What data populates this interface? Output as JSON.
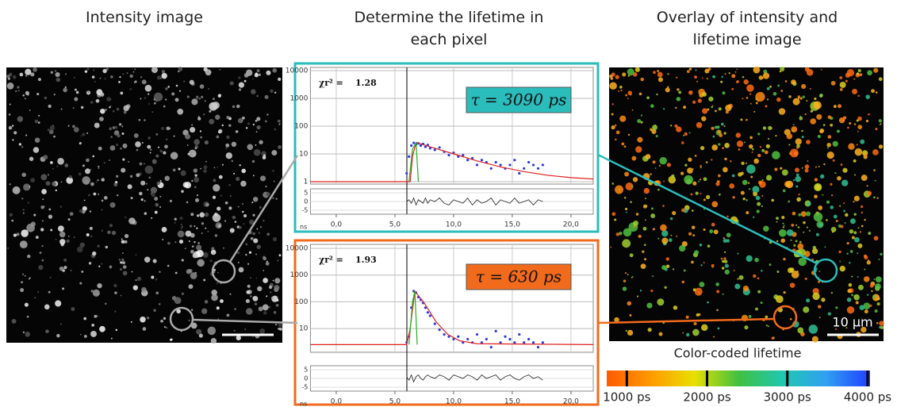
{
  "titles": [
    "Intensity image",
    "Determine the lifetime in each pixel",
    "Overlay of intensity and lifetime image"
  ],
  "scale_bar_label": "10 µm",
  "colorbar": {
    "title": "Color-coded lifetime",
    "lim": [
      750,
      4030
    ],
    "colors": [
      "#ff5a00",
      "#ff9a00",
      "#e8e000",
      "#40c040",
      "#20c8b0",
      "#30a0f0",
      "#2040ff"
    ],
    "ticks": [
      {
        "value": 1000,
        "label": "1000 ps"
      },
      {
        "value": 2000,
        "label": "2000 ps"
      },
      {
        "value": 3000,
        "label": "3000 ps"
      },
      {
        "value": 4000,
        "label": "4000 ps"
      }
    ]
  },
  "chart_data": [
    {
      "type": "scatter",
      "log_y": true,
      "grid": true,
      "xlabel": "ns",
      "xlim": [
        -2.2,
        21.9
      ],
      "xticks": [
        {
          "value": 0,
          "label": "0,0"
        },
        {
          "value": 5,
          "label": "5,0"
        },
        {
          "value": 10,
          "label": "10,0"
        },
        {
          "value": 15,
          "label": "15,0"
        },
        {
          "value": 20,
          "label": "20,0"
        }
      ],
      "ylim": [
        1,
        10000
      ],
      "yticks": [
        1,
        10,
        100,
        1000,
        10000
      ],
      "y2lim": [
        -7,
        7
      ],
      "y2ticks": [
        5,
        0,
        -5
      ],
      "chi2_label": "χr² =",
      "chi2": 1.28,
      "tau_label": "τ = 3090 ps",
      "tau_color": "#2bbcbc",
      "series": [
        {
          "color": "#2a3ce0",
          "mode": "markers",
          "x": [
            6.0,
            6.2,
            6.4,
            6.6,
            6.8,
            7.0,
            7.2,
            7.4,
            7.6,
            7.8,
            8.0,
            8.4,
            8.8,
            9.2,
            9.6,
            10.0,
            10.4,
            10.8,
            11.2,
            11.6,
            12.0,
            12.4,
            12.8,
            13.2,
            13.6,
            14.0,
            14.4,
            14.8,
            15.2,
            15.6,
            16.0,
            16.4,
            16.8,
            17.2,
            17.6
          ],
          "values": [
            2,
            8,
            20,
            25,
            22,
            24,
            20,
            23,
            18,
            21,
            16,
            14,
            17,
            12,
            9,
            11,
            8,
            9,
            6,
            7,
            4,
            6,
            5,
            3,
            5,
            4,
            3,
            4,
            6,
            2,
            3,
            5,
            4,
            3,
            4
          ]
        },
        {
          "color": "#e02020",
          "mode": "line",
          "x": [
            -2.2,
            6.0,
            6.3,
            6.5,
            6.8,
            8,
            10,
            12,
            14,
            16,
            18,
            20,
            21.9
          ],
          "values": [
            1,
            1,
            1,
            8,
            26,
            18,
            10,
            5.6,
            3.4,
            2.3,
            1.7,
            1.4,
            1.25
          ]
        },
        {
          "color": "#20b020",
          "mode": "line",
          "x": [
            6.2,
            6.5,
            6.8,
            7.0
          ],
          "values": [
            1,
            15,
            25,
            1
          ]
        },
        {
          "color": "#222222",
          "mode": "line",
          "axis": "y2",
          "x": [
            6.0,
            6.2,
            6.4,
            6.6,
            6.8,
            7.0,
            7.2,
            7.4,
            7.6,
            7.8,
            8.0,
            8.4,
            8.8,
            9.2,
            9.6,
            10.0,
            10.4,
            10.8,
            11.2,
            11.6,
            12.0,
            12.4,
            12.8,
            13.2,
            13.6,
            14.0,
            14.4,
            14.8,
            15.2,
            15.6,
            16.0,
            16.4,
            16.8,
            17.2,
            17.6
          ],
          "values": [
            0,
            1,
            -1,
            2,
            -2,
            1,
            0,
            -1,
            2,
            -1,
            1,
            0,
            2,
            -1,
            -2,
            1,
            0,
            -1,
            2,
            -2,
            1,
            -1,
            0,
            2,
            -2,
            1,
            0,
            -1,
            2,
            -1,
            0,
            1,
            -2,
            1,
            0
          ]
        }
      ]
    },
    {
      "type": "scatter",
      "log_y": true,
      "grid": true,
      "xlabel": "ns",
      "xlim": [
        -2.2,
        21.9
      ],
      "xticks": [
        {
          "value": 0,
          "label": "0,0"
        },
        {
          "value": 5,
          "label": "5,0"
        },
        {
          "value": 10,
          "label": "10,0"
        },
        {
          "value": 15,
          "label": "15,0"
        },
        {
          "value": 20,
          "label": "20,0"
        }
      ],
      "ylim": [
        1.7,
        10000
      ],
      "yticks": [
        10,
        100,
        1000,
        10000
      ],
      "y2lim": [
        -7,
        7
      ],
      "y2ticks": [
        5,
        0,
        -5
      ],
      "chi2_label": "χr² =",
      "chi2": 1.93,
      "tau_label": "τ = 630 ps",
      "tau_color": "#f26a1b",
      "series": [
        {
          "color": "#2a3ce0",
          "mode": "markers",
          "x": [
            6.0,
            6.2,
            6.4,
            6.6,
            6.8,
            7.0,
            7.2,
            7.4,
            7.6,
            7.8,
            8.0,
            8.4,
            8.8,
            9.2,
            9.6,
            10.0,
            10.4,
            10.8,
            11.2,
            11.6,
            12.0,
            12.4,
            12.8,
            13.2,
            13.6,
            14.0,
            14.4,
            14.8,
            15.2,
            15.6,
            16.0,
            16.4,
            16.8,
            17.2,
            17.6
          ],
          "values": [
            3,
            5,
            60,
            250,
            220,
            150,
            120,
            90,
            60,
            40,
            30,
            15,
            9,
            6,
            5,
            4,
            5,
            3,
            4,
            3,
            6,
            3,
            4,
            2,
            8,
            3,
            5,
            4,
            3,
            6,
            3,
            4,
            3,
            2,
            3
          ]
        },
        {
          "color": "#e02020",
          "mode": "line",
          "x": [
            -2.2,
            6.0,
            6.3,
            6.7,
            7.5,
            8.5,
            9.5,
            10.5,
            12,
            21.9
          ],
          "values": [
            2.5,
            2.5,
            10,
            250,
            90,
            18,
            6,
            3.5,
            2.7,
            2.5
          ]
        },
        {
          "color": "#20b020",
          "mode": "line",
          "x": [
            6.2,
            6.5,
            6.7,
            6.9
          ],
          "values": [
            2.5,
            100,
            250,
            2.5
          ]
        },
        {
          "color": "#222222",
          "mode": "line",
          "axis": "y2",
          "x": [
            6.0,
            6.2,
            6.4,
            6.6,
            6.8,
            7.0,
            7.2,
            7.4,
            7.6,
            7.8,
            8.0,
            8.4,
            8.8,
            9.2,
            9.6,
            10.0,
            10.4,
            10.8,
            11.2,
            11.6,
            12.0,
            12.4,
            12.8,
            13.2,
            13.6,
            14.0,
            14.4,
            14.8,
            15.2,
            15.6,
            16.0,
            16.4,
            16.8,
            17.2,
            17.6
          ],
          "values": [
            1,
            -1,
            2,
            -2,
            1,
            2,
            0,
            -1,
            1,
            2,
            1,
            0,
            2,
            1,
            -1,
            2,
            1,
            0,
            2,
            1,
            -1,
            2,
            0,
            1,
            2,
            -1,
            1,
            2,
            0,
            -1,
            1,
            2,
            0,
            1,
            -1
          ]
        }
      ]
    }
  ]
}
